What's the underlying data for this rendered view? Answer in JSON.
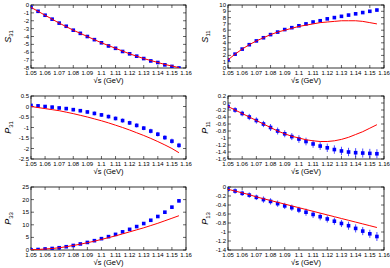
{
  "chart_data": [
    {
      "type": "scatter",
      "y_label": "S31",
      "x_label": "√s (GeV)",
      "xlim": [
        1.05,
        1.16
      ],
      "xticks": [
        1.05,
        1.06,
        1.07,
        1.08,
        1.09,
        1.1,
        1.11,
        1.12,
        1.13,
        1.14,
        1.15,
        1.16
      ],
      "ylim": [
        -8,
        0
      ],
      "yticks": [
        0,
        -1,
        -2,
        -3,
        -4,
        -5,
        -6,
        -7,
        -8
      ],
      "x": [
        1.05,
        1.055,
        1.06,
        1.065,
        1.07,
        1.075,
        1.08,
        1.085,
        1.09,
        1.095,
        1.1,
        1.105,
        1.11,
        1.115,
        1.12,
        1.125,
        1.13,
        1.135,
        1.14,
        1.145,
        1.15,
        1.155
      ],
      "series": [
        {
          "type": "scatter",
          "color": "#0000ff",
          "marker": "square",
          "values": [
            -0.3,
            -0.8,
            -1.3,
            -1.8,
            -2.3,
            -2.7,
            -3.2,
            -3.6,
            -4.0,
            -4.4,
            -4.8,
            -5.2,
            -5.5,
            -5.9,
            -6.2,
            -6.5,
            -6.8,
            -7.1,
            -7.3,
            -7.6,
            -7.8,
            -8.0
          ],
          "errors": [
            0.1,
            0.1,
            0.1,
            0.1,
            0.12,
            0.12,
            0.12,
            0.12,
            0.14,
            0.14,
            0.14,
            0.15,
            0.15,
            0.15,
            0.16,
            0.16,
            0.17,
            0.17,
            0.18,
            0.18,
            0.19,
            0.2
          ]
        },
        {
          "type": "line",
          "color": "#ff0000",
          "line_style": "solid",
          "values": [
            -0.3,
            -0.8,
            -1.3,
            -1.8,
            -2.3,
            -2.75,
            -3.2,
            -3.6,
            -4.0,
            -4.4,
            -4.8,
            -5.15,
            -5.5,
            -5.85,
            -6.2,
            -6.5,
            -6.8,
            -7.05,
            -7.3,
            -7.55,
            -7.75,
            -7.95
          ]
        }
      ]
    },
    {
      "type": "scatter",
      "y_label": "S11",
      "x_label": "√s (GeV)",
      "xlim": [
        1.05,
        1.16
      ],
      "xticks": [
        1.05,
        1.06,
        1.07,
        1.08,
        1.09,
        1.1,
        1.11,
        1.12,
        1.13,
        1.14,
        1.15,
        1.16
      ],
      "ylim": [
        0,
        10
      ],
      "yticks": [
        0,
        1,
        2,
        3,
        4,
        5,
        6,
        7,
        8,
        9,
        10
      ],
      "x": [
        1.05,
        1.055,
        1.06,
        1.065,
        1.07,
        1.075,
        1.08,
        1.085,
        1.09,
        1.095,
        1.1,
        1.105,
        1.11,
        1.115,
        1.12,
        1.125,
        1.13,
        1.135,
        1.14,
        1.145,
        1.15,
        1.155
      ],
      "series": [
        {
          "type": "scatter",
          "color": "#0000ff",
          "marker": "square",
          "values": [
            1.3,
            2.2,
            3.0,
            3.7,
            4.3,
            4.8,
            5.3,
            5.7,
            6.1,
            6.4,
            6.7,
            7.0,
            7.3,
            7.5,
            7.8,
            8.0,
            8.2,
            8.4,
            8.6,
            8.8,
            9.0,
            9.2
          ],
          "errors": [
            0.1,
            0.1,
            0.1,
            0.12,
            0.12,
            0.12,
            0.14,
            0.14,
            0.15,
            0.15,
            0.16,
            0.16,
            0.17,
            0.17,
            0.18,
            0.18,
            0.19,
            0.2,
            0.2,
            0.21,
            0.22,
            0.23
          ]
        },
        {
          "type": "line",
          "color": "#ff0000",
          "line_style": "solid",
          "values": [
            1.3,
            2.2,
            3.0,
            3.7,
            4.3,
            4.8,
            5.3,
            5.7,
            6.0,
            6.3,
            6.6,
            6.8,
            7.0,
            7.2,
            7.3,
            7.4,
            7.5,
            7.5,
            7.5,
            7.4,
            7.2,
            7.0
          ]
        }
      ]
    },
    {
      "type": "scatter",
      "y_label": "P31",
      "x_label": "√s (GeV)",
      "xlim": [
        1.05,
        1.16
      ],
      "xticks": [
        1.05,
        1.06,
        1.07,
        1.08,
        1.09,
        1.1,
        1.11,
        1.12,
        1.13,
        1.14,
        1.15,
        1.16
      ],
      "ylim": [
        -2.5,
        0.5
      ],
      "yticks": [
        0.5,
        0,
        -0.5,
        -1,
        -1.5,
        -2,
        -2.5
      ],
      "x": [
        1.05,
        1.055,
        1.06,
        1.065,
        1.07,
        1.075,
        1.08,
        1.085,
        1.09,
        1.095,
        1.1,
        1.105,
        1.11,
        1.115,
        1.12,
        1.125,
        1.13,
        1.135,
        1.14,
        1.145,
        1.15,
        1.155
      ],
      "series": [
        {
          "type": "scatter",
          "color": "#0000ff",
          "marker": "square",
          "values": [
            0.05,
            0.03,
            0.0,
            -0.03,
            -0.07,
            -0.1,
            -0.15,
            -0.2,
            -0.26,
            -0.33,
            -0.4,
            -0.48,
            -0.57,
            -0.67,
            -0.78,
            -0.9,
            -1.03,
            -1.17,
            -1.32,
            -1.48,
            -1.65,
            -1.85
          ],
          "errors": [
            0.07,
            0.07,
            0.07,
            0.07,
            0.08,
            0.08,
            0.08,
            0.08,
            0.08,
            0.09,
            0.09,
            0.09,
            0.09,
            0.1,
            0.1,
            0.1,
            0.1,
            0.11,
            0.11,
            0.11,
            0.12,
            0.12
          ]
        },
        {
          "type": "line",
          "color": "#ff0000",
          "line_style": "solid",
          "values": [
            0.0,
            -0.05,
            -0.1,
            -0.15,
            -0.2,
            -0.27,
            -0.34,
            -0.42,
            -0.5,
            -0.59,
            -0.68,
            -0.78,
            -0.89,
            -1.0,
            -1.12,
            -1.25,
            -1.38,
            -1.52,
            -1.67,
            -1.83,
            -2.0,
            -2.2
          ]
        }
      ]
    },
    {
      "type": "scatter",
      "y_label": "P11",
      "x_label": "√s (GeV)",
      "xlim": [
        1.05,
        1.16
      ],
      "xticks": [
        1.05,
        1.06,
        1.07,
        1.08,
        1.09,
        1.1,
        1.11,
        1.12,
        1.13,
        1.14,
        1.15,
        1.16
      ],
      "ylim": [
        -1.6,
        0.2
      ],
      "yticks": [
        0.2,
        0,
        -0.2,
        -0.4,
        -0.6,
        -0.8,
        -1,
        -1.2,
        -1.4,
        -1.6
      ],
      "x": [
        1.05,
        1.055,
        1.06,
        1.065,
        1.07,
        1.075,
        1.08,
        1.085,
        1.09,
        1.095,
        1.1,
        1.105,
        1.11,
        1.115,
        1.12,
        1.125,
        1.13,
        1.135,
        1.14,
        1.145,
        1.15,
        1.155
      ],
      "series": [
        {
          "type": "scatter",
          "color": "#0000ff",
          "marker": "square",
          "values": [
            -0.1,
            -0.2,
            -0.3,
            -0.4,
            -0.5,
            -0.6,
            -0.7,
            -0.8,
            -0.88,
            -0.96,
            -1.03,
            -1.1,
            -1.17,
            -1.23,
            -1.28,
            -1.33,
            -1.37,
            -1.4,
            -1.42,
            -1.43,
            -1.44,
            -1.45
          ],
          "errors": [
            0.08,
            0.08,
            0.08,
            0.09,
            0.09,
            0.09,
            0.1,
            0.1,
            0.1,
            0.1,
            0.11,
            0.11,
            0.11,
            0.11,
            0.12,
            0.12,
            0.12,
            0.12,
            0.13,
            0.13,
            0.13,
            0.13
          ]
        },
        {
          "type": "line",
          "color": "#ff0000",
          "line_style": "solid",
          "values": [
            -0.1,
            -0.2,
            -0.3,
            -0.4,
            -0.5,
            -0.6,
            -0.7,
            -0.8,
            -0.88,
            -0.95,
            -1.0,
            -1.05,
            -1.08,
            -1.1,
            -1.1,
            -1.08,
            -1.04,
            -0.98,
            -0.9,
            -0.82,
            -0.72,
            -0.62
          ]
        }
      ]
    },
    {
      "type": "scatter",
      "y_label": "P33",
      "x_label": "√s (GeV)",
      "xlim": [
        1.05,
        1.16
      ],
      "xticks": [
        1.05,
        1.06,
        1.07,
        1.08,
        1.09,
        1.1,
        1.11,
        1.12,
        1.13,
        1.14,
        1.15,
        1.16
      ],
      "ylim": [
        0,
        25
      ],
      "yticks": [
        0,
        5,
        10,
        15,
        20,
        25
      ],
      "x": [
        1.05,
        1.055,
        1.06,
        1.065,
        1.07,
        1.075,
        1.08,
        1.085,
        1.09,
        1.095,
        1.1,
        1.105,
        1.11,
        1.115,
        1.12,
        1.125,
        1.13,
        1.135,
        1.14,
        1.145,
        1.15,
        1.155
      ],
      "series": [
        {
          "type": "scatter",
          "color": "#0000ff",
          "marker": "square",
          "values": [
            0.1,
            0.2,
            0.4,
            0.6,
            0.9,
            1.3,
            1.8,
            2.4,
            3.0,
            3.7,
            4.5,
            5.3,
            6.2,
            7.2,
            8.2,
            9.3,
            10.5,
            11.8,
            13.3,
            15.0,
            17.0,
            19.5
          ],
          "errors": [
            0.1,
            0.1,
            0.1,
            0.1,
            0.1,
            0.15,
            0.15,
            0.2,
            0.2,
            0.2,
            0.25,
            0.25,
            0.3,
            0.3,
            0.35,
            0.35,
            0.4,
            0.4,
            0.45,
            0.5,
            0.55,
            0.6
          ]
        },
        {
          "type": "line",
          "color": "#ff0000",
          "line_style": "solid",
          "values": [
            0.1,
            0.2,
            0.4,
            0.6,
            0.9,
            1.3,
            1.8,
            2.3,
            2.9,
            3.5,
            4.2,
            4.9,
            5.6,
            6.4,
            7.2,
            8.0,
            8.8,
            9.7,
            10.6,
            11.6,
            12.6,
            13.6
          ]
        }
      ]
    },
    {
      "type": "scatter",
      "y_label": "P13",
      "x_label": "√s (GeV)",
      "xlim": [
        1.05,
        1.16
      ],
      "xticks": [
        1.05,
        1.06,
        1.07,
        1.08,
        1.09,
        1.1,
        1.11,
        1.12,
        1.13,
        1.14,
        1.15,
        1.16
      ],
      "ylim": [
        -1.4,
        0
      ],
      "yticks": [
        0,
        -0.2,
        -0.4,
        -0.6,
        -0.8,
        -1,
        -1.2,
        -1.4
      ],
      "x": [
        1.05,
        1.055,
        1.06,
        1.065,
        1.07,
        1.075,
        1.08,
        1.085,
        1.09,
        1.095,
        1.1,
        1.105,
        1.11,
        1.115,
        1.12,
        1.125,
        1.13,
        1.135,
        1.14,
        1.145,
        1.15,
        1.155
      ],
      "series": [
        {
          "type": "scatter",
          "color": "#0000ff",
          "marker": "square",
          "values": [
            -0.05,
            -0.09,
            -0.14,
            -0.18,
            -0.23,
            -0.28,
            -0.32,
            -0.37,
            -0.42,
            -0.46,
            -0.51,
            -0.56,
            -0.61,
            -0.66,
            -0.71,
            -0.76,
            -0.81,
            -0.86,
            -0.92,
            -0.98,
            -1.04,
            -1.1
          ],
          "errors": [
            0.06,
            0.06,
            0.06,
            0.06,
            0.06,
            0.07,
            0.07,
            0.07,
            0.07,
            0.07,
            0.07,
            0.08,
            0.08,
            0.08,
            0.08,
            0.08,
            0.08,
            0.09,
            0.09,
            0.09,
            0.09,
            0.1
          ]
        },
        {
          "type": "line",
          "color": "#ff0000",
          "line_style": "solid",
          "values": [
            -0.05,
            -0.09,
            -0.13,
            -0.17,
            -0.22,
            -0.26,
            -0.3,
            -0.34,
            -0.38,
            -0.42,
            -0.46,
            -0.5,
            -0.54,
            -0.58,
            -0.62,
            -0.66,
            -0.7,
            -0.74,
            -0.78,
            -0.82,
            -0.86,
            -0.9
          ]
        }
      ]
    }
  ]
}
